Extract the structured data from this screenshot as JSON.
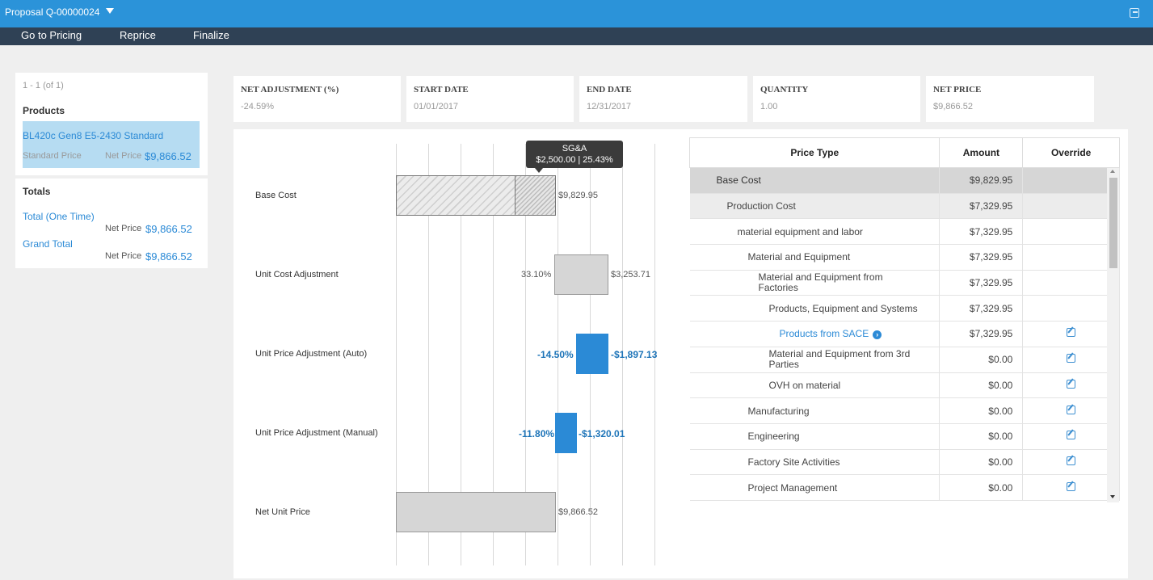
{
  "header": {
    "title": "Proposal Q-00000024",
    "exit_icon": "exit-icon"
  },
  "menu": {
    "items": [
      "Go to Pricing",
      "Reprice",
      "Finalize"
    ]
  },
  "products_card": {
    "paging": "1 - 1 (of 1)",
    "heading": "Products",
    "item_name": "BL420c Gen8 E5-2430 Standard",
    "item_standard_label": "Standard Price",
    "item_net_label": "Net Price",
    "item_net_value": "$9,866.52"
  },
  "totals_card": {
    "heading": "Totals",
    "total_one_time": "Total (One Time)",
    "total_one_time_net_label": "Net Price",
    "total_one_time_net_value": "$9,866.52",
    "grand_total": "Grand Total",
    "grand_total_net_label": "Net Price",
    "grand_total_net_value": "$9,866.52"
  },
  "kpis": [
    {
      "label": "NET ADJUSTMENT (%)",
      "value": "-24.59%"
    },
    {
      "label": "START DATE",
      "value": "01/01/2017"
    },
    {
      "label": "END DATE",
      "value": "12/31/2017"
    },
    {
      "label": "QUANTITY",
      "value": "1.00"
    },
    {
      "label": "NET PRICE",
      "value": "$9,866.52"
    }
  ],
  "waterfall": {
    "rows": [
      {
        "label": "Base Cost",
        "value": "$9,829.95"
      },
      {
        "label": "Unit Cost Adjustment",
        "percent": "33.10%",
        "value": "$3,253.71"
      },
      {
        "label": "Unit Price Adjustment (Auto)",
        "percent": "-14.50%",
        "value": "-$1,897.13"
      },
      {
        "label": "Unit Price Adjustment (Manual)",
        "percent": "-11.80%",
        "value": "-$1,320.01"
      },
      {
        "label": "Net Unit Price",
        "value": "$9,866.52"
      }
    ],
    "tooltip": {
      "title": "SG&A",
      "detail": "$2,500.00 | 25.43%"
    },
    "colors": {
      "gray": "#d6d6d6",
      "blue": "#2b8ad6"
    }
  },
  "price_table": {
    "headers": [
      "Price Type",
      "Amount",
      "Override"
    ],
    "rows": [
      {
        "type": "Base Cost",
        "amount": "$9,829.95"
      },
      {
        "type": "Production Cost",
        "amount": "$7,329.95"
      },
      {
        "type": "material equipment and labor",
        "amount": "$7,329.95"
      },
      {
        "type": "Material and Equipment",
        "amount": "$7,329.95"
      },
      {
        "type": "Material and Equipment from Factories",
        "amount": "$7,329.95"
      },
      {
        "type": "Products, Equipment and Systems",
        "amount": "$7,329.95"
      },
      {
        "type": "Products from SACE",
        "amount": "$7,329.95"
      },
      {
        "type": "Material and Equipment from 3rd Parties",
        "amount": "$0.00"
      },
      {
        "type": "OVH on material",
        "amount": "$0.00"
      },
      {
        "type": "Manufacturing",
        "amount": "$0.00"
      },
      {
        "type": "Engineering",
        "amount": "$0.00"
      },
      {
        "type": "Factory Site Activities",
        "amount": "$0.00"
      },
      {
        "type": "Project Management",
        "amount": "$0.00"
      }
    ]
  }
}
